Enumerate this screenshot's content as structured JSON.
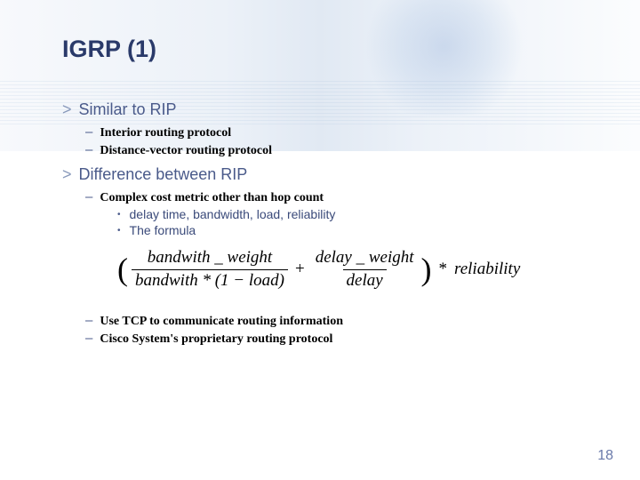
{
  "title": "IGRP (1)",
  "pageNumber": "18",
  "sections": [
    {
      "heading": "Similar to RIP",
      "subs": [
        {
          "text": "Interior routing protocol"
        },
        {
          "text": "Distance-vector routing protocol"
        }
      ]
    },
    {
      "heading": "Difference between RIP",
      "subs": [
        {
          "text": "Complex cost metric other than hop count",
          "subsubs": [
            {
              "text": "delay time, bandwidth, load, reliability"
            },
            {
              "text": "The formula"
            }
          ]
        },
        {
          "text": "Use TCP to communicate routing information"
        },
        {
          "text": "Cisco System's proprietary routing protocol"
        }
      ]
    }
  ],
  "formula": {
    "frac1_num": "bandwith _ weight",
    "frac1_den": "bandwith * (1 − load)",
    "frac2_num": "delay _ weight",
    "frac2_den": "delay",
    "tail": "reliability"
  },
  "colors": {
    "title": "#2a3a6a",
    "bullet1_text": "#4a5a8a",
    "bullet1_marker": "#8899bb",
    "bullet2_marker": "#4a5a8a",
    "bullet3_text": "#3a4a7a",
    "pagenum": "#6a7aaa"
  }
}
